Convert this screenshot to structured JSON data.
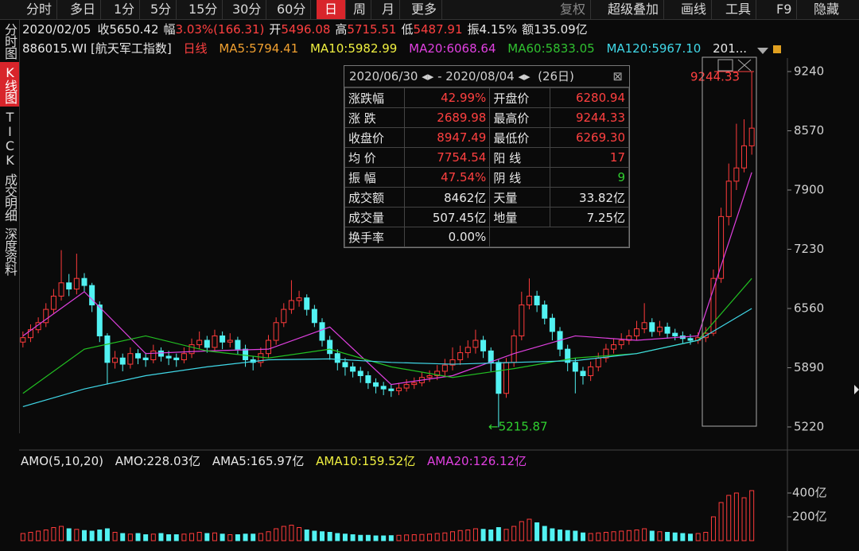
{
  "toolbar": {
    "tabs": [
      "分时",
      "多日",
      "1分",
      "5分",
      "15分",
      "30分",
      "60分",
      "日",
      "周",
      "月",
      "更多"
    ],
    "tools": [
      "复权",
      "超级叠加",
      "画线",
      "工具",
      "F9",
      "隐藏"
    ]
  },
  "info": [
    {
      "label": "2020/02/05",
      "value": "收5650.42"
    },
    {
      "label": "幅",
      "value": "3.03%(166.31)"
    },
    {
      "label": "开",
      "value": "5496.08"
    },
    {
      "label": "高",
      "value": "5715.51"
    },
    {
      "label": "低",
      "value": "5487.91"
    },
    {
      "label": "振",
      "value": "4.15%"
    },
    {
      "label": "额",
      "value": "135.09亿"
    }
  ],
  "sidebar": [
    "分时图",
    "K线图",
    "TICK",
    "成交明细",
    "深度资料"
  ],
  "legend": {
    "symbol": "886015.WI [航天军工指数]",
    "period": "日线",
    "ma": [
      "MA5:5794.41",
      "MA10:5982.99",
      "MA20:6068.64",
      "MA60:5833.05",
      "MA120:5967.10"
    ],
    "more": "201..."
  },
  "popup": {
    "start": "2020/06/30",
    "end": "2020/08/04",
    "days": "(26日)",
    "rows": [
      [
        "涨跌幅",
        "42.99%",
        "开盘价",
        "6280.94"
      ],
      [
        "涨 跌",
        "2689.98",
        "最高价",
        "9244.33"
      ],
      [
        "收盘价",
        "8947.49",
        "最低价",
        "6269.30"
      ],
      [
        "均 价",
        "7754.54",
        "阳 线",
        "17"
      ],
      [
        "振 幅",
        "47.54%",
        "阴 线",
        "9"
      ],
      [
        "成交额",
        "8462亿",
        "天量",
        "33.82亿"
      ],
      [
        "成交量",
        "507.45亿",
        "地量",
        "7.25亿"
      ],
      [
        "换手率",
        "0.00%"
      ]
    ]
  },
  "volume_header": [
    "AMO(5,10,20)",
    "AMO:228.03亿",
    "AMA5:165.97亿",
    "AMA10:159.52亿",
    "AMA20:126.12亿"
  ],
  "chart_data": {
    "type": "candlestick",
    "up_color": "#ff3b3b",
    "down_color": "#52f2f2",
    "ylim": [
      4968,
      9393
    ],
    "yticks": [
      5220,
      5890,
      6560,
      7230,
      7900,
      8570,
      9240
    ],
    "annotations": [
      {
        "text": "9244.33"
      },
      {
        "text": "←5215.87"
      }
    ],
    "open": [
      6180,
      6230,
      6320,
      6400,
      6550,
      6700,
      6850,
      6780,
      6900,
      6820,
      6600,
      6250,
      5950,
      6000,
      5930,
      6050,
      6000,
      5980,
      6080,
      6020,
      6000,
      5980,
      6050,
      6150,
      6200,
      6120,
      6250,
      6180,
      6200,
      6100,
      5980,
      5950,
      6050,
      6200,
      6400,
      6550,
      6650,
      6680,
      6550,
      6400,
      6200,
      6050,
      5950,
      5900,
      5850,
      5800,
      5720,
      5680,
      5650,
      5630,
      5660,
      5700,
      5720,
      5780,
      5800,
      5850,
      5920,
      5980,
      6060,
      6120,
      6200,
      6080,
      5950,
      5600,
      5950,
      6250,
      6600,
      6700,
      6600,
      6450,
      6300,
      6100,
      5950,
      5850,
      5800,
      5900,
      6000,
      6100,
      6150,
      6200,
      6250,
      6330,
      6400,
      6300,
      6350,
      6280,
      6250,
      6220,
      6200,
      6230,
      6280,
      6900,
      7600,
      8000,
      8150,
      8400
    ],
    "high": [
      6300,
      6380,
      6460,
      6620,
      6780,
      7220,
      6950,
      7180,
      6960,
      6850,
      6640,
      6280,
      6080,
      6050,
      6120,
      6100,
      6060,
      6150,
      6120,
      6080,
      6050,
      6120,
      6220,
      6300,
      6250,
      6320,
      6300,
      6280,
      6240,
      6150,
      6020,
      6120,
      6260,
      6460,
      6620,
      6880,
      6760,
      6720,
      6600,
      6450,
      6250,
      6100,
      6000,
      5950,
      5900,
      5850,
      5770,
      5730,
      5700,
      5720,
      5760,
      5780,
      5840,
      5860,
      5920,
      5990,
      6120,
      6140,
      6200,
      6320,
      6250,
      6120,
      5980,
      6000,
      6320,
      6750,
      6900,
      6760,
      6650,
      6500,
      6350,
      6150,
      6000,
      5900,
      5960,
      6060,
      6160,
      6220,
      6280,
      6320,
      6420,
      6620,
      6450,
      6420,
      6400,
      6330,
      6300,
      6270,
      6290,
      6350,
      7000,
      7700,
      8200,
      8650,
      8700,
      9244.33
    ],
    "low": [
      6120,
      6180,
      6280,
      6350,
      6500,
      6650,
      6700,
      6720,
      6750,
      6520,
      6180,
      5700,
      5880,
      5850,
      5880,
      5930,
      5900,
      5940,
      5960,
      5920,
      5900,
      5940,
      6000,
      6100,
      6060,
      6080,
      6100,
      6120,
      6040,
      5900,
      5860,
      5900,
      6000,
      6150,
      6350,
      6500,
      6580,
      6480,
      6350,
      6130,
      5980,
      5860,
      5800,
      5780,
      5720,
      5650,
      5600,
      5580,
      5560,
      5580,
      5620,
      5650,
      5680,
      5730,
      5750,
      5800,
      5860,
      5920,
      6000,
      6050,
      6000,
      5850,
      5215.87,
      5550,
      5900,
      6200,
      6550,
      6520,
      6380,
      6200,
      6020,
      5850,
      5600,
      5700,
      5740,
      5850,
      5950,
      6050,
      6100,
      6150,
      6200,
      6280,
      6240,
      6250,
      6220,
      6200,
      6170,
      6150,
      6160,
      6180,
      6250,
      6850,
      7500,
      7900,
      8100,
      8300
    ],
    "close": [
      6230,
      6320,
      6400,
      6550,
      6700,
      6850,
      6780,
      6900,
      6820,
      6600,
      6250,
      5950,
      6000,
      5930,
      6050,
      6000,
      5980,
      6080,
      6020,
      6000,
      5980,
      6050,
      6150,
      6200,
      6120,
      6250,
      6180,
      6200,
      6100,
      5980,
      5950,
      6050,
      6200,
      6400,
      6550,
      6650,
      6680,
      6550,
      6400,
      6200,
      6050,
      5950,
      5900,
      5850,
      5800,
      5720,
      5680,
      5650,
      5630,
      5660,
      5700,
      5720,
      5780,
      5800,
      5850,
      5920,
      5980,
      6060,
      6120,
      6200,
      6080,
      5950,
      5600,
      5950,
      6250,
      6600,
      6700,
      6600,
      6450,
      6300,
      6100,
      5950,
      5850,
      5800,
      5900,
      6000,
      6100,
      6150,
      6200,
      6250,
      6330,
      6400,
      6300,
      6350,
      6280,
      6250,
      6220,
      6200,
      6230,
      6280,
      6900,
      7600,
      8000,
      8150,
      8400,
      8600
    ],
    "series": [
      {
        "color": "#e040e0",
        "x": [
          0,
          8,
          16,
          24,
          32,
          40,
          48,
          56,
          64,
          72,
          80,
          88,
          95
        ],
        "values": [
          6250,
          6750,
          6050,
          6080,
          6100,
          6350,
          5700,
          5800,
          6050,
          6250,
          6200,
          6250,
          8100
        ]
      },
      {
        "color": "#22c022",
        "x": [
          0,
          8,
          16,
          24,
          32,
          40,
          48,
          56,
          64,
          72,
          80,
          88,
          95
        ],
        "values": [
          5600,
          6100,
          6250,
          6080,
          6000,
          6100,
          5900,
          5780,
          5880,
          6000,
          6050,
          6200,
          6900
        ]
      },
      {
        "color": "#40d8e8",
        "x": [
          0,
          8,
          16,
          24,
          32,
          40,
          48,
          56,
          64,
          72,
          80,
          88,
          95
        ],
        "values": [
          5450,
          5650,
          5800,
          5900,
          5980,
          5990,
          5950,
          5930,
          5950,
          5970,
          6050,
          6200,
          6560
        ]
      }
    ],
    "volume": [
      60,
      70,
      80,
      90,
      110,
      120,
      100,
      95,
      85,
      80,
      90,
      100,
      70,
      60,
      55,
      60,
      50,
      55,
      60,
      50,
      50,
      55,
      60,
      70,
      60,
      65,
      55,
      50,
      50,
      55,
      55,
      60,
      75,
      100,
      120,
      130,
      110,
      90,
      80,
      75,
      70,
      60,
      55,
      50,
      45,
      45,
      40,
      40,
      42,
      45,
      48,
      50,
      52,
      55,
      60,
      65,
      75,
      85,
      90,
      100,
      95,
      90,
      110,
      95,
      120,
      160,
      180,
      150,
      120,
      100,
      90,
      85,
      80,
      65,
      60,
      65,
      70,
      75,
      80,
      85,
      90,
      100,
      80,
      75,
      70,
      65,
      60,
      55,
      60,
      70,
      200,
      320,
      380,
      400,
      360,
      420
    ],
    "vlim": [
      0,
      567
    ],
    "vticks": [
      {
        "value": 200,
        "label": "200亿"
      },
      {
        "value": 400,
        "label": "400亿"
      }
    ]
  }
}
